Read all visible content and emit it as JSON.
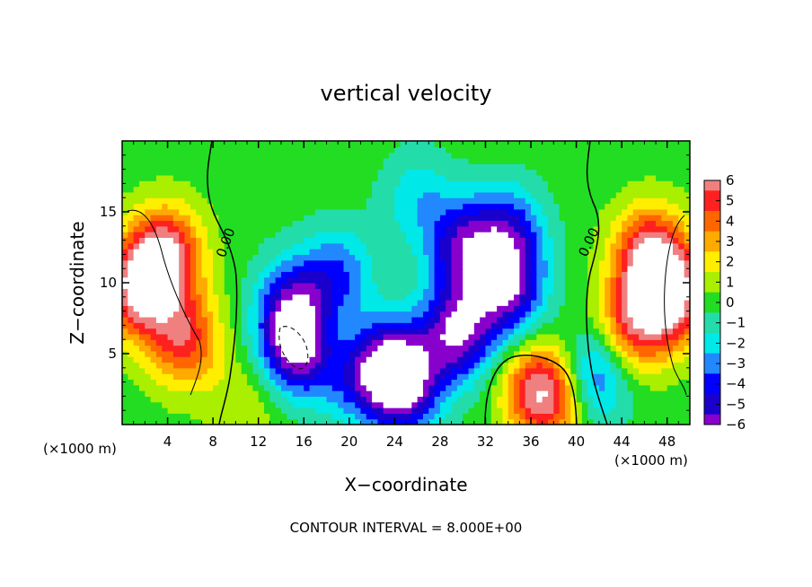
{
  "chart_data": {
    "type": "heatmap",
    "title": "vertical velocity",
    "xlabel": "X−coordinate",
    "ylabel": "Z−coordinate",
    "x_unit_left": "(×1000 m)",
    "x_unit_right": "(×1000 m)",
    "footer": "CONTOUR INTERVAL = 8.000E+00",
    "xlim": [
      0,
      50
    ],
    "ylim": [
      0,
      20
    ],
    "x_ticks": [
      4,
      8,
      12,
      16,
      20,
      24,
      28,
      32,
      36,
      40,
      44,
      48
    ],
    "y_ticks": [
      5,
      10,
      15
    ],
    "colorbar": {
      "ticks": [
        "6",
        "5",
        "4",
        "3",
        "2",
        "1",
        "0",
        "−1",
        "−2",
        "−3",
        "−4",
        "−5",
        "−6"
      ],
      "values": [
        6,
        5,
        4,
        3,
        2,
        1,
        0,
        -1,
        -2,
        -3,
        -4,
        -5,
        -6
      ],
      "colors": [
        "#f08080",
        "#ff2020",
        "#ff6600",
        "#ffaa00",
        "#ffee00",
        "#aaee00",
        "#22dd22",
        "#22ddaa",
        "#00e8e8",
        "#2288ff",
        "#0000ff",
        "#1a00cc",
        "#8800cc"
      ]
    },
    "contour_labels": [
      "0.00",
      "0.00"
    ],
    "features": [
      {
        "x": 1.5,
        "z": 9.5,
        "w": 0.9
      },
      {
        "x": 48.5,
        "z": 9.0,
        "w": 0.9
      },
      {
        "x": 3.8,
        "z": 12.0,
        "w": 0.9
      },
      {
        "x": 46.5,
        "z": 12.0,
        "w": 0.9
      },
      {
        "x": 5.5,
        "z": 6.0,
        "w": 0.7
      },
      {
        "x": 45.0,
        "z": 7.0,
        "w": 0.7
      },
      {
        "x": 36.5,
        "z": 2.5,
        "w": 0.6
      },
      {
        "x": 38.0,
        "z": 2.0,
        "w": 0.5
      },
      {
        "x": 11.0,
        "z": 1.5,
        "w": 0.2
      },
      {
        "x": 18.0,
        "z": 6.0,
        "w": 0.25
      },
      {
        "x": 15.0,
        "z": 8.5,
        "w": -0.6
      },
      {
        "x": 19.0,
        "z": 10.5,
        "w": -0.5
      },
      {
        "x": 15.5,
        "z": 5.5,
        "w": -1.0
      },
      {
        "x": 23.5,
        "z": 4.0,
        "w": -0.8
      },
      {
        "x": 25.0,
        "z": 2.8,
        "w": -0.7
      },
      {
        "x": 29.5,
        "z": 6.5,
        "w": -0.9
      },
      {
        "x": 30.0,
        "z": 12.5,
        "w": -0.7
      },
      {
        "x": 34.0,
        "z": 9.5,
        "w": -0.8
      },
      {
        "x": 34.0,
        "z": 13.5,
        "w": -0.6
      },
      {
        "x": 41.5,
        "z": 3.5,
        "w": -0.6
      },
      {
        "x": 20.0,
        "z": 3.5,
        "w": -0.4
      },
      {
        "x": 26.0,
        "z": 16.0,
        "w": -0.3
      }
    ]
  }
}
